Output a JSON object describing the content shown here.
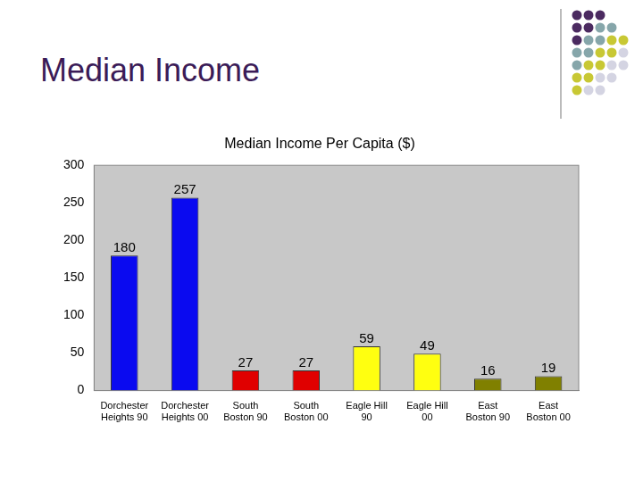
{
  "slide_title": "Median Income",
  "chart_data": {
    "type": "bar",
    "title": "Median Income Per Capita ($)",
    "categories": [
      "Dorchester\nHeights 90",
      "Dorchester\nHeights 00",
      "South\nBoston 90",
      "South\nBoston 00",
      "Eagle Hill\n90",
      "Eagle Hill\n00",
      "East\nBoston 90",
      "East\nBoston 00"
    ],
    "values": [
      180,
      257,
      27,
      27,
      59,
      49,
      16,
      19
    ],
    "colors": [
      "#0a0af0",
      "#0a0af0",
      "#e00000",
      "#e00000",
      "#ffff10",
      "#ffff10",
      "#808000",
      "#808000"
    ],
    "ylim": [
      0,
      300
    ],
    "yticks": [
      0,
      50,
      100,
      150,
      200,
      250,
      300
    ],
    "grid": false,
    "data_labels": true
  }
}
